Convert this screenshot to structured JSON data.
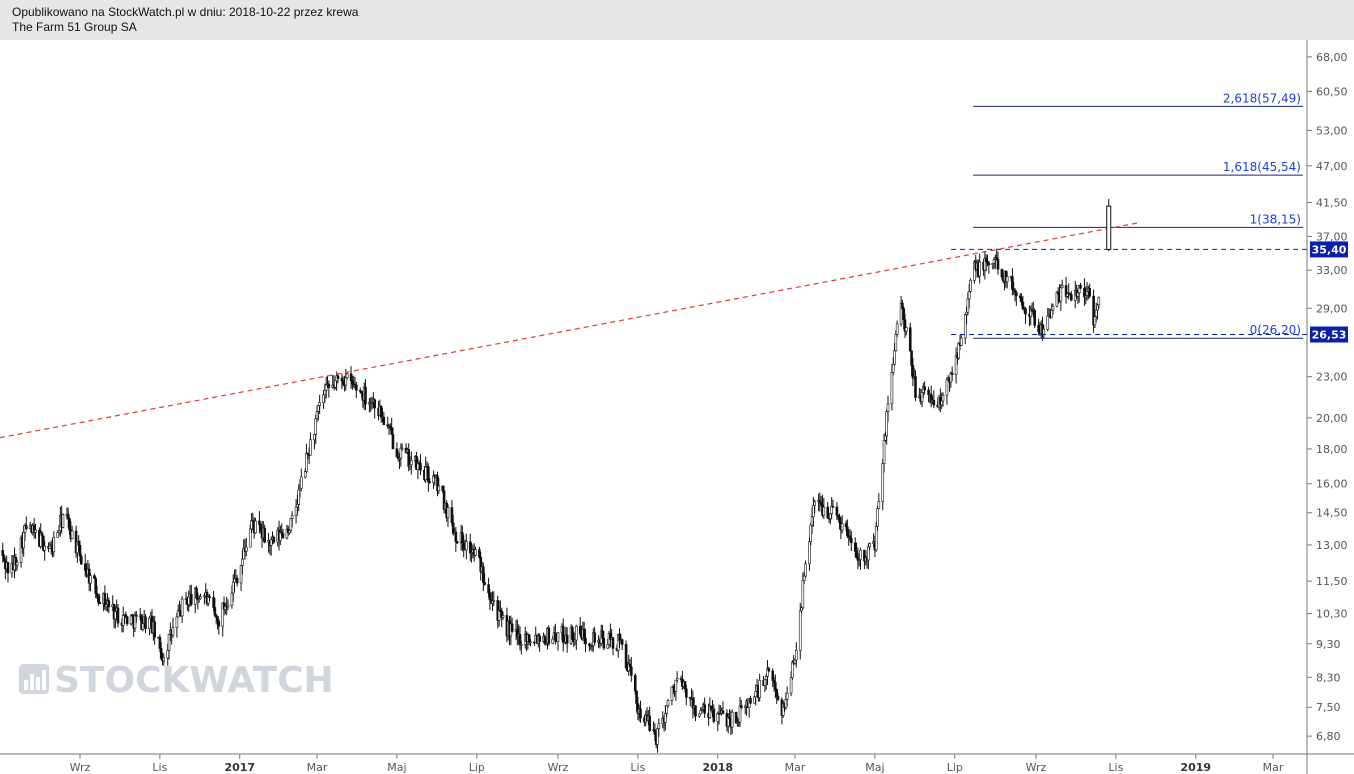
{
  "header": {
    "line1": "Opublikowano na StockWatch.pl w dniu: 2018-10-22 przez krewa",
    "line2": "The Farm 51 Group SA"
  },
  "watermark": {
    "text": "STOCKWATCH",
    "icon": "bar-chart-logo-icon"
  },
  "colors": {
    "header_bg": "#e6e6e6",
    "fib": "#1a237e",
    "fib_label": "#1f3fd0",
    "trend": "#e53935",
    "tag_bg": "#0b1fa8",
    "candle": "#111111"
  },
  "chart_data": {
    "type": "candlestick",
    "y_scale": "log",
    "ylim": [
      6.4,
      72
    ],
    "grid": false,
    "y_ticks": [
      "68,00",
      "60,50",
      "53,00",
      "47,00",
      "41,50",
      "37,00",
      "33,00",
      "29,00",
      "26,53",
      "23,00",
      "20,00",
      "18,00",
      "16,00",
      "14,50",
      "13,00",
      "11,50",
      "10,30",
      "9,30",
      "8,30",
      "7,50",
      "6,80"
    ],
    "x_ticks": [
      {
        "label": "Wrz",
        "date": "2016-09-01",
        "bold": false
      },
      {
        "label": "Lis",
        "date": "2016-11-01",
        "bold": false
      },
      {
        "label": "2017",
        "date": "2017-01-01",
        "bold": true
      },
      {
        "label": "Mar",
        "date": "2017-03-01",
        "bold": false
      },
      {
        "label": "Maj",
        "date": "2017-05-01",
        "bold": false
      },
      {
        "label": "Lip",
        "date": "2017-07-01",
        "bold": false
      },
      {
        "label": "Wrz",
        "date": "2017-09-01",
        "bold": false
      },
      {
        "label": "Lis",
        "date": "2017-11-01",
        "bold": false
      },
      {
        "label": "2018",
        "date": "2018-01-01",
        "bold": true
      },
      {
        "label": "Mar",
        "date": "2018-03-01",
        "bold": false
      },
      {
        "label": "Maj",
        "date": "2018-05-01",
        "bold": false
      },
      {
        "label": "Lip",
        "date": "2018-07-01",
        "bold": false
      },
      {
        "label": "Wrz",
        "date": "2018-09-01",
        "bold": false
      },
      {
        "label": "Lis",
        "date": "2018-11-01",
        "bold": false
      },
      {
        "label": "2019",
        "date": "2019-01-01",
        "bold": true
      },
      {
        "label": "Mar",
        "date": "2019-03-01",
        "bold": false
      }
    ],
    "fib_levels": [
      {
        "label": "2,618(57,49)",
        "value": 57.49
      },
      {
        "label": "1,618(45,54)",
        "value": 45.54
      },
      {
        "label": "1(38,15)",
        "value": 38.15
      },
      {
        "label": "0(26,20)",
        "value": 26.2
      }
    ],
    "fib_start_date": "2018-07-15",
    "horizontal_lines": [
      {
        "value": 35.4,
        "label": "35,40",
        "style": "dashed"
      },
      {
        "value": 26.53,
        "label": "26,53",
        "style": "dashed"
      }
    ],
    "trendline": {
      "style": "dashed",
      "points": [
        {
          "date": "2016-07-01",
          "value": 18.7
        },
        {
          "date": "2018-11-20",
          "value": 38.8
        }
      ]
    },
    "price_path": [
      {
        "date": "2016-07-01",
        "value": 12.7
      },
      {
        "date": "2016-07-10",
        "value": 11.8
      },
      {
        "date": "2016-07-22",
        "value": 13.8
      },
      {
        "date": "2016-08-10",
        "value": 12.8
      },
      {
        "date": "2016-08-20",
        "value": 14.5
      },
      {
        "date": "2016-09-01",
        "value": 12.5
      },
      {
        "date": "2016-09-15",
        "value": 11.0
      },
      {
        "date": "2016-10-01",
        "value": 10.2
      },
      {
        "date": "2016-10-25",
        "value": 10.0
      },
      {
        "date": "2016-11-03",
        "value": 8.9
      },
      {
        "date": "2016-11-20",
        "value": 10.8
      },
      {
        "date": "2016-12-05",
        "value": 11.0
      },
      {
        "date": "2016-12-15",
        "value": 10.0
      },
      {
        "date": "2017-01-01",
        "value": 12.0
      },
      {
        "date": "2017-01-10",
        "value": 14.0
      },
      {
        "date": "2017-01-25",
        "value": 13.0
      },
      {
        "date": "2017-02-10",
        "value": 14.0
      },
      {
        "date": "2017-02-20",
        "value": 17.0
      },
      {
        "date": "2017-03-05",
        "value": 21.5
      },
      {
        "date": "2017-03-20",
        "value": 23.0
      },
      {
        "date": "2017-04-15",
        "value": 21.0
      },
      {
        "date": "2017-05-01",
        "value": 18.0
      },
      {
        "date": "2017-06-01",
        "value": 16.0
      },
      {
        "date": "2017-06-15",
        "value": 13.5
      },
      {
        "date": "2017-07-01",
        "value": 12.5
      },
      {
        "date": "2017-07-20",
        "value": 10.0
      },
      {
        "date": "2017-08-01",
        "value": 9.5
      },
      {
        "date": "2017-09-15",
        "value": 9.6
      },
      {
        "date": "2017-10-20",
        "value": 9.3
      },
      {
        "date": "2017-11-01",
        "value": 7.5
      },
      {
        "date": "2017-11-15",
        "value": 6.8
      },
      {
        "date": "2017-12-01",
        "value": 8.3
      },
      {
        "date": "2017-12-15",
        "value": 7.4
      },
      {
        "date": "2018-01-15",
        "value": 7.2
      },
      {
        "date": "2018-02-10",
        "value": 8.4
      },
      {
        "date": "2018-02-20",
        "value": 7.4
      },
      {
        "date": "2018-03-01",
        "value": 9.0
      },
      {
        "date": "2018-03-15",
        "value": 15.0
      },
      {
        "date": "2018-04-01",
        "value": 14.5
      },
      {
        "date": "2018-04-20",
        "value": 12.5
      },
      {
        "date": "2018-05-01",
        "value": 13.0
      },
      {
        "date": "2018-05-10",
        "value": 20.0
      },
      {
        "date": "2018-05-20",
        "value": 30.0
      },
      {
        "date": "2018-06-01",
        "value": 22.0
      },
      {
        "date": "2018-06-20",
        "value": 21.0
      },
      {
        "date": "2018-07-01",
        "value": 24.0
      },
      {
        "date": "2018-07-15",
        "value": 33.0
      },
      {
        "date": "2018-08-01",
        "value": 34.0
      },
      {
        "date": "2018-08-20",
        "value": 30.0
      },
      {
        "date": "2018-09-05",
        "value": 27.0
      },
      {
        "date": "2018-09-20",
        "value": 30.5
      },
      {
        "date": "2018-10-10",
        "value": 31.0
      },
      {
        "date": "2018-10-15",
        "value": 27.5
      },
      {
        "date": "2018-10-22",
        "value": 33.0
      }
    ],
    "last_bar": {
      "date": "2018-10-22",
      "open": 35.4,
      "high": 42.0,
      "low": 35.2,
      "close": 41.0
    }
  }
}
